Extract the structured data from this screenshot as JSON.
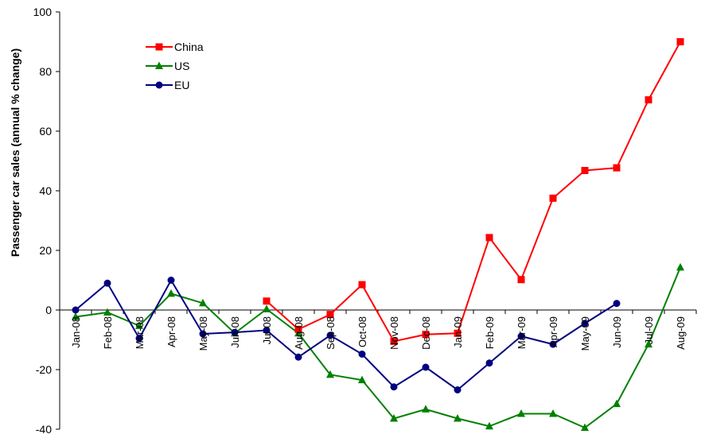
{
  "chart_data": {
    "type": "line",
    "xlabel": "",
    "ylabel": "Passenger car sales (annual % change)",
    "ylim": [
      -40,
      100
    ],
    "yticks": [
      -40,
      -20,
      0,
      20,
      40,
      60,
      80,
      100
    ],
    "grid": false,
    "legend_position": "top-left",
    "categories": [
      "Jan-08",
      "Feb-08",
      "Mar-08",
      "Apr-08",
      "May-08",
      "Jun-08",
      "Jul-08",
      "Aug-08",
      "Sep-08",
      "Oct-08",
      "Nov-08",
      "Dec-08",
      "Jan-09",
      "Feb-09",
      "Mar-09",
      "Apr-09",
      "May-09",
      "Jun-09",
      "Jul-09",
      "Aug-09"
    ],
    "series": [
      {
        "name": "China",
        "color": "#ff0000",
        "marker": "square",
        "values": [
          null,
          null,
          null,
          null,
          null,
          null,
          3,
          -6.5,
          -1.5,
          8.5,
          -10.5,
          -8.2,
          -7.8,
          24.3,
          10.2,
          37.5,
          46.8,
          47.7,
          70.5,
          90
        ]
      },
      {
        "name": "US",
        "color": "#008000",
        "marker": "triangle",
        "values": [
          -2.3,
          -0.8,
          -5.3,
          5.5,
          2.3,
          -7.8,
          0.3,
          -7.8,
          -21.7,
          -23.5,
          -36.4,
          -33.3,
          -36.4,
          -39,
          -34.8,
          -34.8,
          -39.5,
          -31.5,
          -11.5,
          14.3
        ]
      },
      {
        "name": "EU",
        "color": "#000080",
        "marker": "circle",
        "values": [
          0,
          9,
          -9.5,
          10,
          -8,
          -7.5,
          -6.8,
          -15.8,
          -8.5,
          -14.8,
          -25.8,
          -19.2,
          -26.8,
          -17.8,
          -8.8,
          -11.5,
          -4.5,
          2.2,
          null,
          null
        ]
      }
    ]
  }
}
